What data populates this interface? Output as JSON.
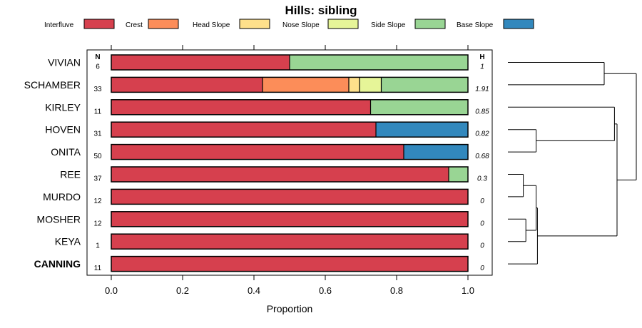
{
  "chart_data": {
    "type": "bar",
    "orientation": "horizontal",
    "stacked": true,
    "title": "Hills: sibling",
    "xlabel": "Proportion",
    "xlim": [
      0,
      1
    ],
    "xticks": [
      "0.0",
      "0.2",
      "0.4",
      "0.6",
      "0.8",
      "1.0"
    ],
    "n_header": "N",
    "h_header": "H",
    "legend": [
      {
        "name": "Interfluve",
        "color": "#d6404e"
      },
      {
        "name": "Crest",
        "color": "#fc8d59"
      },
      {
        "name": "Head Slope",
        "color": "#fee08b"
      },
      {
        "name": "Nose Slope",
        "color": "#e6f598"
      },
      {
        "name": "Side Slope",
        "color": "#99d594"
      },
      {
        "name": "Base Slope",
        "color": "#3288bd"
      }
    ],
    "rows": [
      {
        "label": "VIVIAN",
        "n": "6",
        "h": "1",
        "bold": false,
        "values": [
          0.5,
          0,
          0,
          0,
          0.5,
          0
        ]
      },
      {
        "label": "SCHAMBER",
        "n": "33",
        "h": "1.91",
        "bold": false,
        "values": [
          0.424,
          0.242,
          0.03,
          0.061,
          0.243,
          0
        ]
      },
      {
        "label": "KIRLEY",
        "n": "11",
        "h": "0.85",
        "bold": false,
        "values": [
          0.727,
          0,
          0,
          0,
          0.273,
          0
        ]
      },
      {
        "label": "HOVEN",
        "n": "31",
        "h": "0.82",
        "bold": false,
        "values": [
          0.742,
          0,
          0,
          0,
          0,
          0.258
        ]
      },
      {
        "label": "ONITA",
        "n": "50",
        "h": "0.68",
        "bold": false,
        "values": [
          0.82,
          0,
          0,
          0,
          0,
          0.18
        ]
      },
      {
        "label": "REE",
        "n": "37",
        "h": "0.3",
        "bold": false,
        "values": [
          0.946,
          0,
          0,
          0,
          0.054,
          0
        ]
      },
      {
        "label": "MURDO",
        "n": "12",
        "h": "0",
        "bold": false,
        "values": [
          1,
          0,
          0,
          0,
          0,
          0
        ]
      },
      {
        "label": "MOSHER",
        "n": "12",
        "h": "0",
        "bold": false,
        "values": [
          1,
          0,
          0,
          0,
          0,
          0
        ]
      },
      {
        "label": "KEYA",
        "n": "1",
        "h": "0",
        "bold": false,
        "values": [
          1,
          0,
          0,
          0,
          0,
          0
        ]
      },
      {
        "label": "CANNING",
        "n": "11",
        "h": "0",
        "bold": true,
        "values": [
          1,
          0,
          0,
          0,
          0,
          0
        ]
      }
    ],
    "dendrogram": {
      "merges": [
        {
          "left": "VIVIAN",
          "right": "SCHAMBER",
          "height": 0.75
        },
        {
          "left": "HOVEN",
          "right": "ONITA",
          "height": 0.22
        },
        {
          "left": "REE",
          "right": "MURDO",
          "height": 0.12
        },
        {
          "left": "MOSHER",
          "right": "KEYA",
          "height": 0.14
        },
        {
          "left": "REE+MURDO",
          "right": "MOSHER+KEYA",
          "height": 0.22
        },
        {
          "left": "REE+MURDO+MOSHER+KEYA",
          "right": "CANNING",
          "height": 0.23
        },
        {
          "left": "KIRLEY",
          "right": "HOVEN+ONITA",
          "height": 0.83
        },
        {
          "left": "KIRLEY+HOVEN+ONITA",
          "right": "REE+MURDO+MOSHER+KEYA+CANNING",
          "height": 0.85
        },
        {
          "left": "VIVIAN+SCHAMBER",
          "right": "KIRLEY+HOVEN+ONITA+REE+MURDO+MOSHER+KEYA+CANNING",
          "height": 1.0
        }
      ]
    }
  }
}
